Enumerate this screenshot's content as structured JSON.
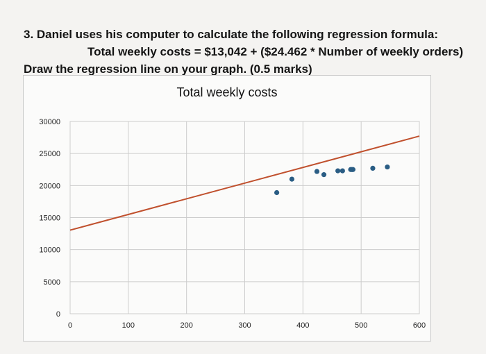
{
  "question": {
    "line1": "3. Daniel uses his computer to calculate the following regression formula:",
    "line2": "Total weekly costs = $13,042 + ($24.462 * Number of weekly orders)",
    "line3": "Draw the regression line on your graph. (0.5 marks)"
  },
  "colors": {
    "regression_line": "#c0502d",
    "points": "#2a5d84",
    "grid": "#cccccc"
  },
  "chart_data": {
    "type": "scatter",
    "title": "Total weekly costs",
    "xlabel": "",
    "ylabel": "",
    "xlim": [
      0,
      600
    ],
    "ylim": [
      0,
      30000
    ],
    "x_ticks": [
      0,
      100,
      200,
      300,
      400,
      500,
      600
    ],
    "y_ticks": [
      0,
      5000,
      10000,
      15000,
      20000,
      25000,
      30000
    ],
    "grid": true,
    "points": [
      {
        "x": 355,
        "y": 18900
      },
      {
        "x": 381,
        "y": 21000
      },
      {
        "x": 424,
        "y": 22200
      },
      {
        "x": 436,
        "y": 21700
      },
      {
        "x": 460,
        "y": 22300
      },
      {
        "x": 468,
        "y": 22300
      },
      {
        "x": 482,
        "y": 22500
      },
      {
        "x": 484,
        "y": 22500
      },
      {
        "x": 486,
        "y": 22500
      },
      {
        "x": 520,
        "y": 22700
      },
      {
        "x": 545,
        "y": 22900
      }
    ],
    "regression_line": {
      "intercept": 13042,
      "slope": 24.462,
      "x_range": [
        0,
        600
      ]
    }
  }
}
